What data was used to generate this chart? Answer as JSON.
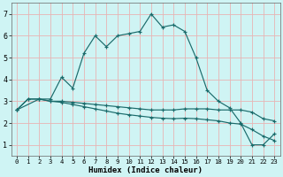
{
  "xlabel": "Humidex (Indice chaleur)",
  "background_color": "#cff4f4",
  "grid_color": "#e8b4b4",
  "line_color": "#1a6b6b",
  "xlim": [
    -0.5,
    23.5
  ],
  "ylim": [
    0.5,
    7.5
  ],
  "xticks": [
    0,
    1,
    2,
    3,
    4,
    5,
    6,
    7,
    8,
    9,
    10,
    11,
    12,
    13,
    14,
    15,
    16,
    17,
    18,
    19,
    20,
    21,
    22,
    23
  ],
  "yticks": [
    1,
    2,
    3,
    4,
    5,
    6,
    7
  ],
  "series": [
    {
      "x": [
        0,
        2,
        3,
        4,
        5,
        6,
        7,
        8,
        9,
        10,
        11,
        12,
        13,
        14,
        15,
        16,
        17,
        18,
        19,
        20,
        21,
        22,
        23
      ],
      "y": [
        2.6,
        3.1,
        3.1,
        4.1,
        3.6,
        5.2,
        6.0,
        5.5,
        6.0,
        6.1,
        6.2,
        7.0,
        6.4,
        6.5,
        6.2,
        5.0,
        3.5,
        3.0,
        2.7,
        2.0,
        1.0,
        1.0,
        1.5
      ]
    },
    {
      "x": [
        0,
        1,
        2,
        3,
        4,
        5,
        6,
        7,
        8,
        9,
        10,
        11,
        12,
        13,
        14,
        15,
        16,
        17,
        18,
        19,
        20,
        21,
        22,
        23
      ],
      "y": [
        2.6,
        3.1,
        3.1,
        3.0,
        3.0,
        2.95,
        2.9,
        2.85,
        2.8,
        2.75,
        2.7,
        2.65,
        2.6,
        2.6,
        2.6,
        2.65,
        2.65,
        2.65,
        2.6,
        2.6,
        2.6,
        2.5,
        2.2,
        2.1
      ]
    },
    {
      "x": [
        0,
        1,
        2,
        3,
        4,
        5,
        6,
        7,
        8,
        9,
        10,
        11,
        12,
        13,
        14,
        15,
        16,
        17,
        18,
        19,
        20,
        21,
        22,
        23
      ],
      "y": [
        2.6,
        3.1,
        3.1,
        3.0,
        2.95,
        2.85,
        2.75,
        2.65,
        2.55,
        2.45,
        2.38,
        2.32,
        2.26,
        2.22,
        2.2,
        2.22,
        2.2,
        2.15,
        2.1,
        2.0,
        1.95,
        1.7,
        1.4,
        1.2
      ]
    }
  ]
}
